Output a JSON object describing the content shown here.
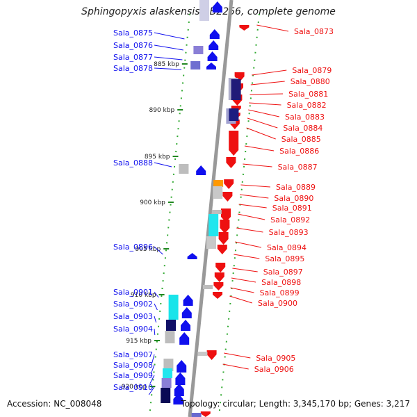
{
  "title": "Sphingopyxis alaskensis RB2256, complete genome",
  "accession": "Accession: NC_008048",
  "topology": "Topology: circular; Length: 3,345,170 bp; Genes: 3,217",
  "colors": {
    "forward": "#1010ee",
    "reverse": "#ee1010",
    "backbone": "#999999",
    "ruler": "#33aa33",
    "tick": "#228822"
  },
  "scale_marks": [
    "885 kbp",
    "890 kbp",
    "895 kbp",
    "900 kbp",
    "905 kbp",
    "910 kbp",
    "915 kbp",
    "920 kbp"
  ],
  "left_genes": [
    "Sala_0875",
    "Sala_0876",
    "Sala_0877",
    "Sala_0878",
    "Sala_0888",
    "Sala_0896",
    "Sala_0901",
    "Sala_0902",
    "Sala_0903",
    "Sala_0904",
    "Sala_0907",
    "Sala_0908",
    "Sala_0909",
    "Sala_0910"
  ],
  "right_genes": [
    "Sala_0873",
    "Sala_0879",
    "Sala_0880",
    "Sala_0881",
    "Sala_0882",
    "Sala_0883",
    "Sala_0884",
    "Sala_0885",
    "Sala_0886",
    "Sala_0887",
    "Sala_0889",
    "Sala_0890",
    "Sala_0891",
    "Sala_0892",
    "Sala_0893",
    "Sala_0894",
    "Sala_0895",
    "Sala_0897",
    "Sala_0898",
    "Sala_0899",
    "Sala_0900",
    "Sala_0905",
    "Sala_0906"
  ]
}
